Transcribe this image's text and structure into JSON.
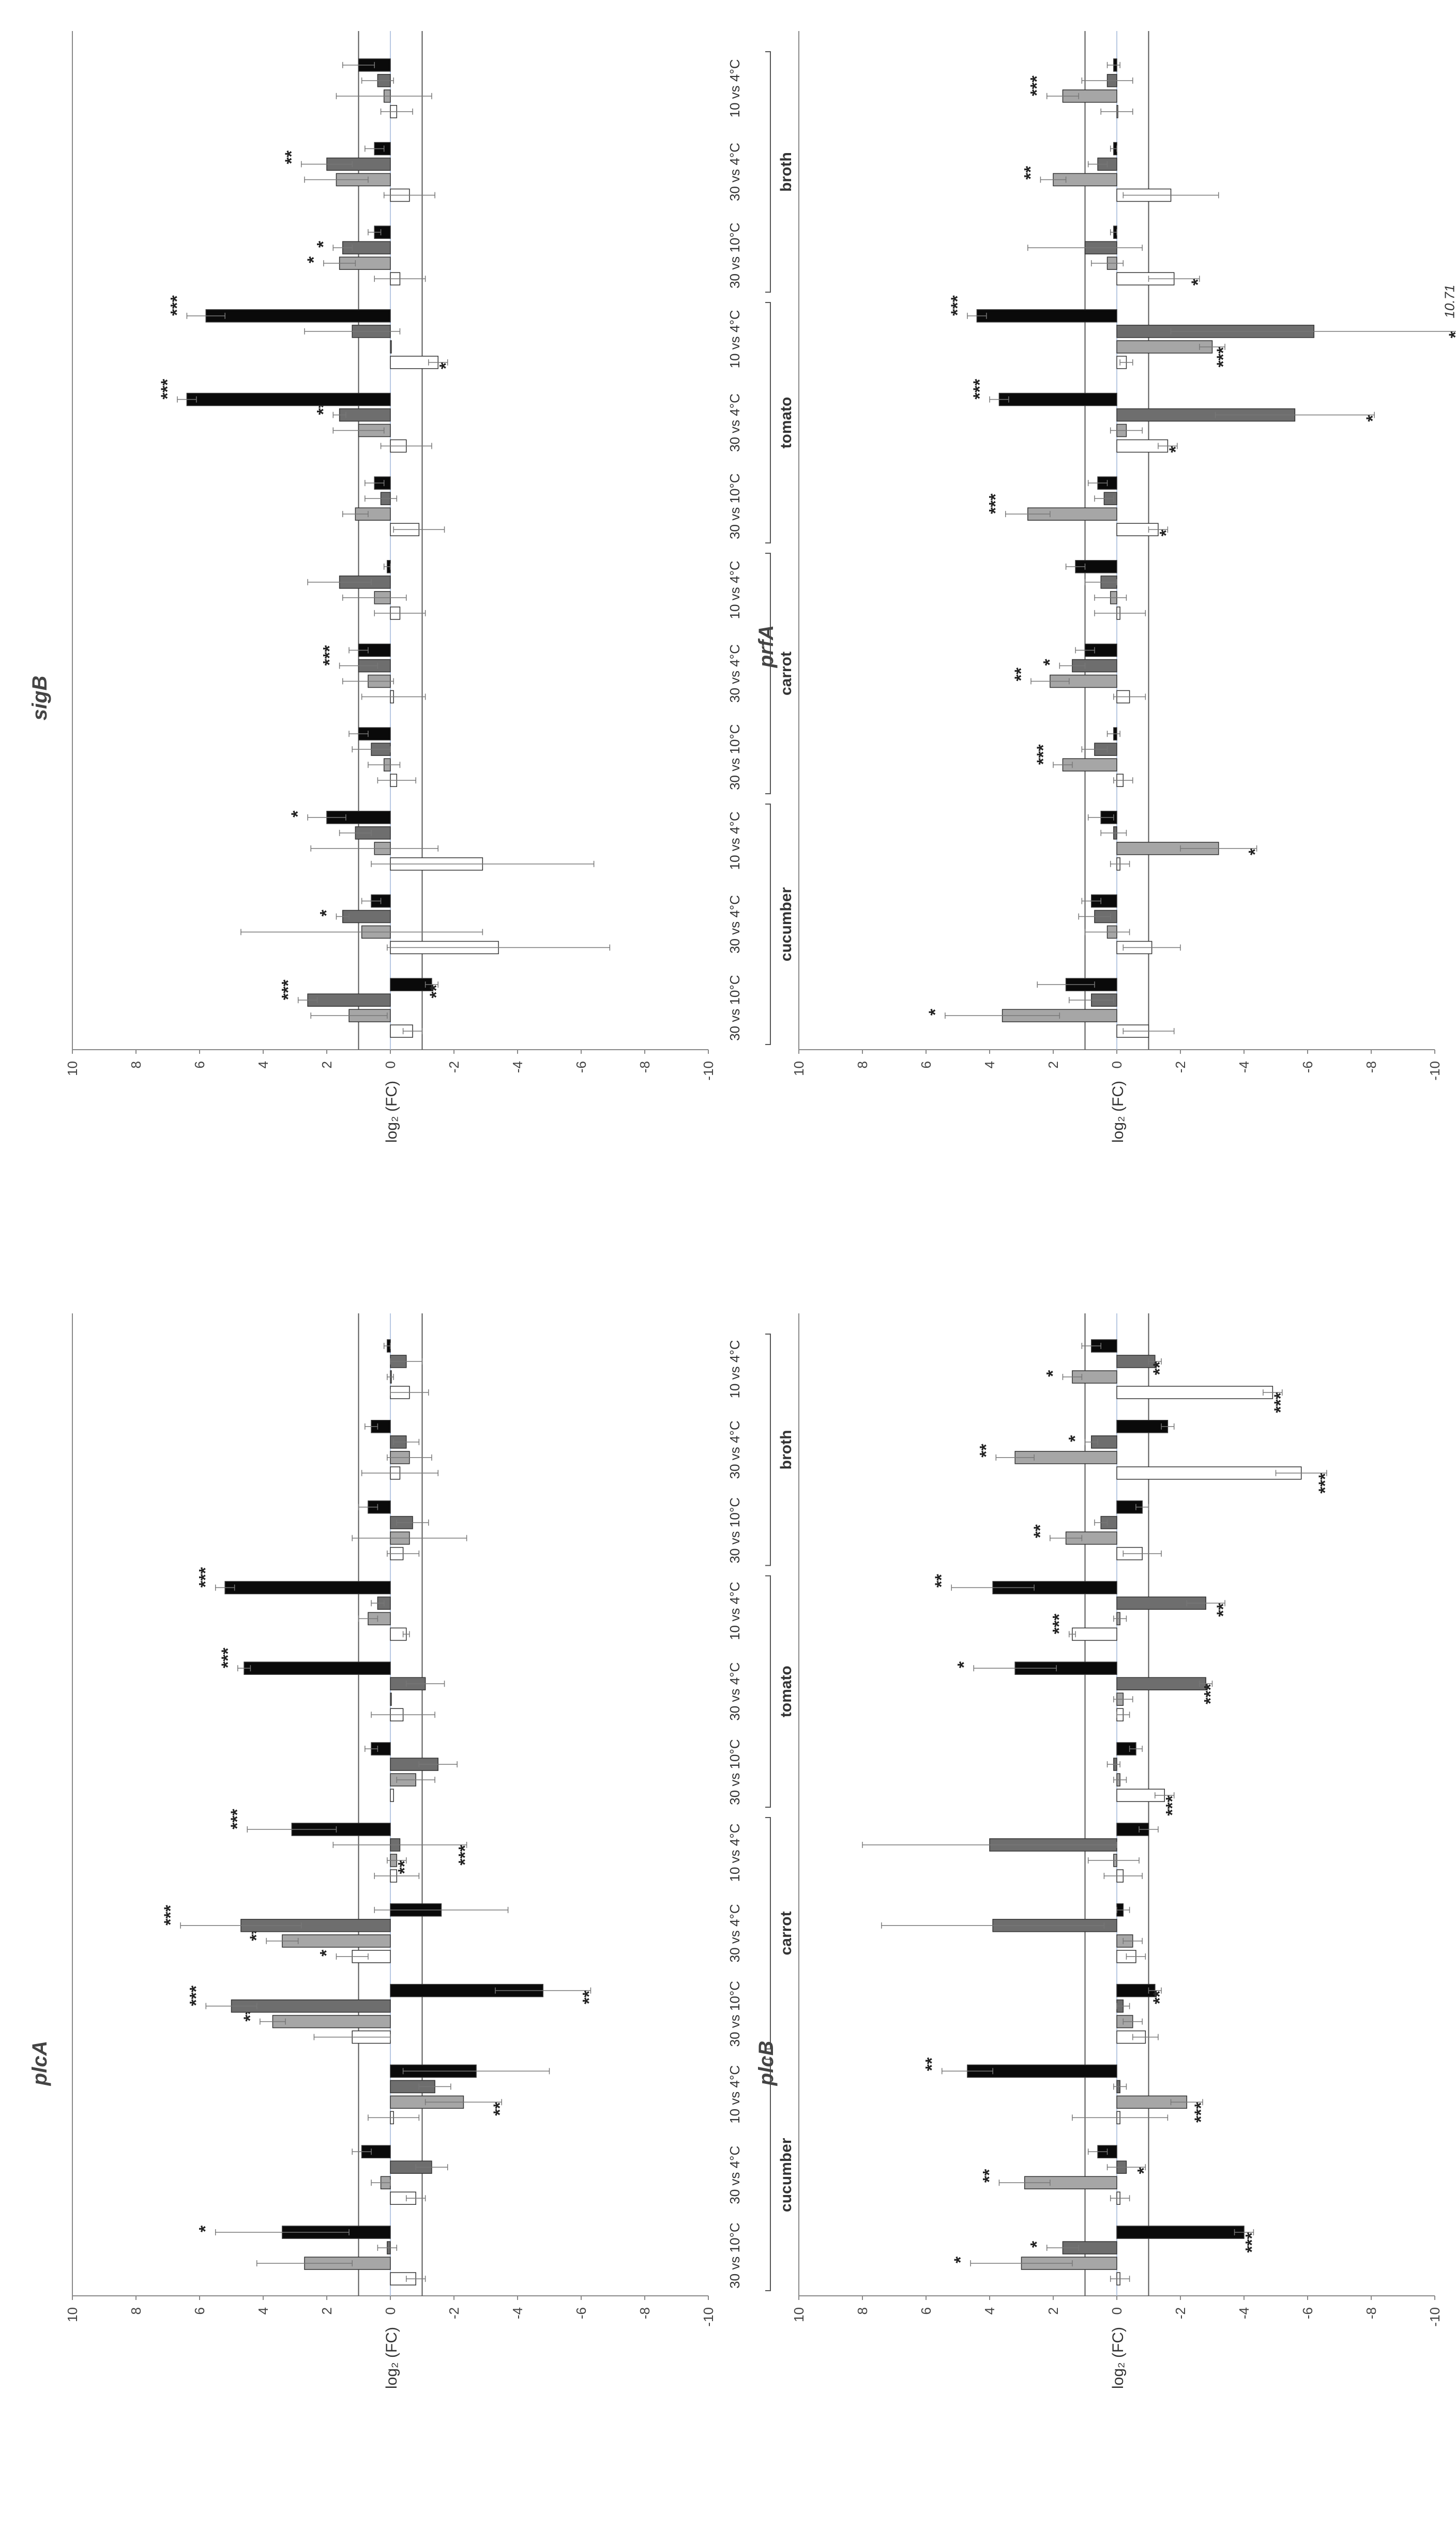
{
  "bar_colors": [
    "#ffffff",
    "#a6a6a6",
    "#6e6e6e",
    "#0a0a0a"
  ],
  "chart_data": [
    {
      "type": "bar",
      "title": "sigB",
      "ylabel": "log₂ (FC)",
      "ylim": [
        -10,
        10
      ],
      "yticks": [
        "10",
        "8",
        "6",
        "4",
        "2",
        "0",
        "-2",
        "-4",
        "-6",
        "-8",
        "-10"
      ],
      "threshold_lines": [
        1,
        -1
      ],
      "groups": [
        "broth",
        "tomato",
        "carrot",
        "cucumber"
      ],
      "conditions": [
        "10 vs 4°C",
        "30 vs 4°C",
        "30 vs 10°C"
      ],
      "values": [
        [
          [
            -0.2,
            0.2,
            0.4,
            1.0
          ],
          [
            -0.6,
            1.7,
            2.0,
            0.5
          ],
          [
            -0.3,
            1.6,
            1.5,
            0.5
          ]
        ],
        [
          [
            -1.5,
            0.0,
            1.2,
            5.8
          ],
          [
            -0.5,
            1.0,
            1.6,
            6.4
          ],
          [
            -0.9,
            1.1,
            0.3,
            0.5
          ]
        ],
        [
          [
            -0.3,
            0.5,
            1.6,
            0.1
          ],
          [
            -0.1,
            0.7,
            1.0,
            1.0
          ],
          [
            -0.2,
            0.2,
            0.6,
            1.0
          ]
        ],
        [
          [
            -2.9,
            0.5,
            1.1,
            2.0
          ],
          [
            -3.4,
            0.9,
            1.5,
            0.6
          ],
          [
            -0.7,
            1.3,
            2.6,
            -1.3
          ]
        ]
      ],
      "errors": [
        [
          [
            0.5,
            1.5,
            0.5,
            0.5
          ],
          [
            0.8,
            1.0,
            0.8,
            0.3
          ],
          [
            0.8,
            0.5,
            0.3,
            0.2
          ]
        ],
        [
          [
            0.3,
            0.0,
            1.5,
            0.6
          ],
          [
            0.8,
            0.8,
            0.2,
            0.3
          ],
          [
            0.8,
            0.4,
            0.5,
            0.3
          ]
        ],
        [
          [
            0.8,
            1.0,
            1.0,
            0.1
          ],
          [
            1.0,
            0.8,
            0.6,
            0.3
          ],
          [
            0.6,
            0.5,
            0.6,
            0.3
          ]
        ],
        [
          [
            3.5,
            2.0,
            0.5,
            0.6
          ],
          [
            3.5,
            3.8,
            0.2,
            0.3
          ],
          [
            0.3,
            1.2,
            0.3,
            0.2
          ]
        ]
      ],
      "significance": [
        [
          [
            "",
            "",
            "",
            ""
          ],
          [
            "",
            "",
            "**",
            ""
          ],
          [
            "",
            "*",
            "*",
            ""
          ]
        ],
        [
          [
            "*",
            "",
            "",
            "***"
          ],
          [
            "",
            "",
            "**",
            "***"
          ],
          [
            "",
            "",
            "",
            ""
          ]
        ],
        [
          [
            "",
            "",
            "",
            ""
          ],
          [
            "",
            "",
            "***",
            ""
          ],
          [
            "",
            "",
            "",
            ""
          ]
        ],
        [
          [
            "",
            "",
            "",
            "*"
          ],
          [
            "",
            "",
            "*",
            ""
          ],
          [
            "",
            "",
            "***",
            "**"
          ]
        ]
      ]
    },
    {
      "type": "bar",
      "title": "prfA",
      "ylabel": "log₂ (FC)",
      "ylim": [
        -10,
        10
      ],
      "yticks": [
        "10",
        "8",
        "6",
        "4",
        "2",
        "0",
        "-2",
        "-4",
        "-6",
        "-8",
        "-10"
      ],
      "threshold_lines": [
        1,
        -1
      ],
      "groups": [
        "broth",
        "tomato",
        "carrot",
        "cucumber"
      ],
      "conditions": [
        "10 vs 4°C",
        "30 vs 4°C",
        "30 vs 10°C"
      ],
      "values": [
        [
          [
            0.0,
            1.7,
            0.3,
            0.1
          ],
          [
            -1.7,
            2.0,
            0.6,
            0.1
          ],
          [
            -1.8,
            0.3,
            1.0,
            0.1
          ]
        ],
        [
          [
            -0.3,
            -3.0,
            -6.2,
            4.4
          ],
          [
            -1.6,
            -0.3,
            -5.6,
            3.7
          ],
          [
            -1.3,
            2.8,
            0.4,
            0.6
          ]
        ],
        [
          [
            -0.1,
            0.2,
            0.5,
            1.3
          ],
          [
            -0.4,
            2.1,
            1.4,
            1.0
          ],
          [
            -0.2,
            1.7,
            0.7,
            0.1
          ]
        ],
        [
          [
            -0.1,
            -3.2,
            0.1,
            0.5
          ],
          [
            -1.1,
            0.3,
            0.7,
            0.8
          ],
          [
            -1.0,
            3.6,
            0.8,
            1.6
          ]
        ]
      ],
      "errors": [
        [
          [
            0.5,
            0.5,
            0.8,
            0.2
          ],
          [
            1.5,
            0.4,
            0.3,
            0.1
          ],
          [
            0.8,
            0.5,
            1.8,
            0.1
          ]
        ],
        [
          [
            0.2,
            0.4,
            4.5,
            0.3
          ],
          [
            0.3,
            0.5,
            2.5,
            0.3
          ],
          [
            0.3,
            0.7,
            0.3,
            0.3
          ]
        ],
        [
          [
            0.8,
            0.5,
            0.5,
            0.3
          ],
          [
            0.5,
            0.6,
            0.4,
            0.3
          ],
          [
            0.3,
            0.3,
            0.4,
            0.2
          ]
        ],
        [
          [
            0.3,
            1.2,
            0.4,
            0.4
          ],
          [
            0.9,
            0.7,
            0.5,
            0.3
          ],
          [
            0.8,
            1.8,
            0.7,
            0.9
          ]
        ]
      ],
      "significance": [
        [
          [
            "",
            "***",
            "",
            ""
          ],
          [
            "",
            "**",
            "",
            ""
          ],
          [
            "*",
            "",
            "",
            ""
          ]
        ],
        [
          [
            "",
            "***",
            "*",
            "***"
          ],
          [
            "*",
            "",
            "*",
            "***"
          ],
          [
            "*",
            "***",
            "",
            ""
          ]
        ],
        [
          [
            "",
            "",
            "",
            ""
          ],
          [
            "",
            "**",
            "*",
            ""
          ],
          [
            "",
            "***",
            "",
            ""
          ]
        ],
        [
          [
            "",
            "*",
            "",
            ""
          ],
          [
            "",
            "",
            "",
            ""
          ],
          [
            "",
            "*",
            "",
            ""
          ]
        ]
      ],
      "annotations": [
        "10.71"
      ]
    },
    {
      "type": "bar",
      "title": "plcA",
      "ylabel": "log₂ (FC)",
      "ylim": [
        -10,
        10
      ],
      "yticks": [
        "10",
        "8",
        "6",
        "4",
        "2",
        "0",
        "-2",
        "-4",
        "-6",
        "-8",
        "-10"
      ],
      "threshold_lines": [
        1,
        -1
      ],
      "groups": [
        "broth",
        "tomato",
        "carrot",
        "cucumber"
      ],
      "conditions": [
        "10 vs 4°C",
        "30 vs 4°C",
        "30 vs 10°C"
      ],
      "values": [
        [
          [
            -0.6,
            0.0,
            -0.5,
            0.1
          ],
          [
            -0.3,
            -0.6,
            -0.5,
            0.6
          ],
          [
            -0.4,
            -0.6,
            -0.7,
            0.7
          ]
        ],
        [
          [
            -0.5,
            0.7,
            0.4,
            5.2
          ],
          [
            -0.4,
            0.0,
            -1.1,
            4.6
          ],
          [
            -0.1,
            -0.8,
            -1.5,
            0.6
          ]
        ],
        [
          [
            -0.2,
            -0.2,
            -0.3,
            3.1
          ],
          [
            1.2,
            3.4,
            4.7,
            -1.6
          ],
          [
            1.2,
            3.7,
            5.0,
            -4.8
          ]
        ],
        [
          [
            -0.1,
            -2.3,
            -1.4,
            -2.7
          ],
          [
            -0.8,
            0.3,
            -1.3,
            0.9
          ],
          [
            -0.8,
            2.7,
            0.1,
            3.4
          ]
        ]
      ],
      "errors": [
        [
          [
            0.6,
            0.1,
            0.5,
            0.1
          ],
          [
            1.2,
            0.7,
            0.4,
            0.2
          ],
          [
            0.5,
            1.8,
            0.5,
            0.3
          ]
        ],
        [
          [
            0.1,
            0.3,
            0.2,
            0.3
          ],
          [
            1.0,
            0.0,
            0.6,
            0.2
          ],
          [
            0.0,
            0.6,
            0.6,
            0.2
          ]
        ],
        [
          [
            0.7,
            0.3,
            2.1,
            1.4
          ],
          [
            0.5,
            0.5,
            1.9,
            2.1
          ],
          [
            1.2,
            0.4,
            0.8,
            1.5
          ]
        ],
        [
          [
            0.8,
            1.2,
            0.5,
            2.3
          ],
          [
            0.3,
            0.3,
            0.5,
            0.3
          ],
          [
            0.3,
            1.5,
            0.3,
            2.1
          ]
        ]
      ],
      "significance": [
        [
          [
            "",
            "",
            "",
            ""
          ],
          [
            "",
            "",
            "",
            ""
          ],
          [
            "",
            "",
            "",
            ""
          ]
        ],
        [
          [
            "",
            "",
            "",
            "***"
          ],
          [
            "",
            "",
            "",
            "***"
          ],
          [
            "",
            "",
            "",
            ""
          ]
        ],
        [
          [
            "",
            "**",
            "***",
            "***"
          ],
          [
            "*",
            "***",
            "***",
            ""
          ],
          [
            "",
            "***",
            "***",
            "**"
          ]
        ],
        [
          [
            "",
            "**",
            "",
            ""
          ],
          [
            "",
            "",
            "",
            ""
          ],
          [
            "",
            "",
            "",
            "*"
          ]
        ]
      ]
    },
    {
      "type": "bar",
      "title": "plcB",
      "ylabel": "log₂ (FC)",
      "ylim": [
        -10,
        10
      ],
      "yticks": [
        "10",
        "8",
        "6",
        "4",
        "2",
        "0",
        "-2",
        "-4",
        "-6",
        "-8",
        "-10"
      ],
      "threshold_lines": [
        1,
        -1
      ],
      "groups": [
        "broth",
        "tomato",
        "carrot",
        "cucumber"
      ],
      "conditions": [
        "10 vs 4°C",
        "30 vs 4°C",
        "30 vs 10°C"
      ],
      "values": [
        [
          [
            -4.9,
            1.4,
            -1.2,
            0.8
          ],
          [
            -5.8,
            3.2,
            0.8,
            -1.6
          ],
          [
            -0.8,
            1.6,
            0.5,
            -0.8
          ]
        ],
        [
          [
            1.4,
            -0.1,
            -2.8,
            3.9
          ],
          [
            -0.2,
            -0.2,
            -2.8,
            3.2
          ],
          [
            -1.5,
            -0.1,
            0.1,
            -0.6
          ]
        ],
        [
          [
            -0.2,
            0.1,
            4.0,
            -1.0
          ],
          [
            -0.6,
            -0.5,
            3.9,
            -0.2
          ],
          [
            -0.9,
            -0.5,
            -0.2,
            -1.2
          ]
        ],
        [
          [
            -0.1,
            -2.2,
            -0.1,
            4.7
          ],
          [
            -0.1,
            2.9,
            -0.3,
            0.6
          ],
          [
            -0.1,
            3.0,
            1.7,
            -4.0
          ]
        ]
      ],
      "errors": [
        [
          [
            0.3,
            0.3,
            0.2,
            0.3
          ],
          [
            0.8,
            0.6,
            0.2,
            0.2
          ],
          [
            0.6,
            0.5,
            0.2,
            0.2
          ]
        ],
        [
          [
            0.1,
            0.2,
            0.6,
            1.3
          ],
          [
            0.2,
            0.3,
            0.2,
            1.3
          ],
          [
            0.3,
            0.2,
            0.2,
            0.2
          ]
        ],
        [
          [
            0.6,
            0.8,
            4.0,
            0.3
          ],
          [
            0.3,
            0.3,
            3.5,
            0.2
          ],
          [
            0.4,
            0.3,
            0.2,
            0.2
          ]
        ],
        [
          [
            1.5,
            0.5,
            0.2,
            0.8
          ],
          [
            0.3,
            0.8,
            0.6,
            0.3
          ],
          [
            0.3,
            1.6,
            0.5,
            0.3
          ]
        ]
      ],
      "significance": [
        [
          [
            "***",
            "*",
            "**",
            ""
          ],
          [
            "***",
            "**",
            "*",
            ""
          ],
          [
            "",
            "**",
            "",
            ""
          ]
        ],
        [
          [
            "***",
            "",
            "**",
            "**"
          ],
          [
            "",
            "",
            "***",
            "*"
          ],
          [
            "***",
            "",
            "",
            ""
          ]
        ],
        [
          [
            "",
            "",
            "",
            ""
          ],
          [
            "",
            "",
            "",
            ""
          ],
          [
            "",
            "",
            "",
            "**"
          ]
        ],
        [
          [
            "",
            "***",
            "",
            "**"
          ],
          [
            "",
            "**",
            "*",
            ""
          ],
          [
            "",
            "*",
            "*",
            "***"
          ]
        ]
      ]
    }
  ]
}
